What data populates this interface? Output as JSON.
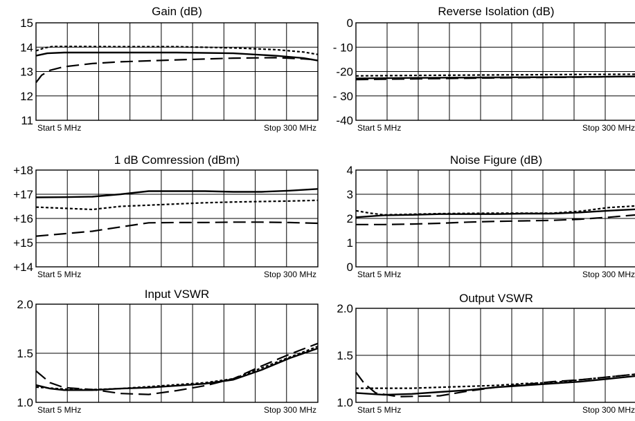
{
  "chart_data": [
    {
      "type": "line",
      "title": "Gain (dB)",
      "ylim": [
        11,
        15
      ],
      "xlim": [
        0,
        10
      ],
      "y_ticks": [
        "15",
        "14",
        "13",
        "12",
        "11"
      ],
      "x_start_label": "Start 5 MHz",
      "x_stop_label": "Stop 300 MHz",
      "grid": true,
      "series": [
        {
          "style": "solid",
          "points": [
            [
              0,
              13.65
            ],
            [
              0.4,
              13.75
            ],
            [
              1,
              13.78
            ],
            [
              3,
              13.78
            ],
            [
              5,
              13.78
            ],
            [
              7,
              13.75
            ],
            [
              8.5,
              13.65
            ],
            [
              9.5,
              13.55
            ],
            [
              10,
              13.45
            ]
          ]
        },
        {
          "style": "dotted",
          "points": [
            [
              0,
              13.85
            ],
            [
              0.3,
              13.97
            ],
            [
              0.6,
              14.03
            ],
            [
              1.5,
              14.03
            ],
            [
              3,
              14.02
            ],
            [
              5,
              14.02
            ],
            [
              7,
              13.97
            ],
            [
              8.5,
              13.9
            ],
            [
              9.5,
              13.8
            ],
            [
              10,
              13.7
            ]
          ]
        },
        {
          "style": "dashed",
          "points": [
            [
              0,
              12.55
            ],
            [
              0.2,
              12.85
            ],
            [
              0.5,
              13.05
            ],
            [
              1,
              13.2
            ],
            [
              2,
              13.33
            ],
            [
              3,
              13.4
            ],
            [
              5,
              13.48
            ],
            [
              7,
              13.55
            ],
            [
              8.5,
              13.57
            ],
            [
              9.5,
              13.52
            ],
            [
              10,
              13.48
            ]
          ]
        }
      ]
    },
    {
      "type": "line",
      "title": "Reverse Isolation (dB)",
      "ylim": [
        -40,
        0
      ],
      "xlim": [
        0,
        10
      ],
      "y_ticks": [
        "0",
        "- 10",
        "-20",
        "- 30",
        "-40"
      ],
      "x_start_label": "Start 5 MHz",
      "x_stop_label": "Stop  300 MHz",
      "grid": true,
      "series": [
        {
          "style": "solid",
          "points": [
            [
              0,
              -22.8
            ],
            [
              2,
              -22.6
            ],
            [
              5,
              -22.4
            ],
            [
              8,
              -22.2
            ],
            [
              10,
              -22.0
            ]
          ]
        },
        {
          "style": "dotted",
          "points": [
            [
              0,
              -21.8
            ],
            [
              2,
              -21.6
            ],
            [
              5,
              -21.4
            ],
            [
              8,
              -21.2
            ],
            [
              10,
              -21.1
            ]
          ]
        },
        {
          "style": "dashed",
          "points": [
            [
              0,
              -23.3
            ],
            [
              2,
              -23.0
            ],
            [
              5,
              -22.6
            ],
            [
              8,
              -22.3
            ],
            [
              10,
              -22.0
            ]
          ]
        }
      ]
    },
    {
      "type": "line",
      "title": "1 dB Comression (dBm)",
      "ylim": [
        14,
        18
      ],
      "xlim": [
        0,
        10
      ],
      "y_ticks": [
        "+18",
        "+17",
        "+16",
        "+15",
        "+14"
      ],
      "x_start_label": "Start 5 MHz",
      "x_stop_label": "Stop 300 MHz",
      "grid": true,
      "series": [
        {
          "style": "solid",
          "points": [
            [
              0,
              16.87
            ],
            [
              1,
              16.88
            ],
            [
              2,
              16.9
            ],
            [
              3,
              17.0
            ],
            [
              4,
              17.13
            ],
            [
              5,
              17.13
            ],
            [
              6,
              17.13
            ],
            [
              7,
              17.1
            ],
            [
              8,
              17.1
            ],
            [
              9,
              17.15
            ],
            [
              10,
              17.22
            ]
          ]
        },
        {
          "style": "dotted",
          "points": [
            [
              0,
              16.47
            ],
            [
              1,
              16.42
            ],
            [
              2,
              16.37
            ],
            [
              3,
              16.5
            ],
            [
              4,
              16.55
            ],
            [
              5,
              16.6
            ],
            [
              6,
              16.65
            ],
            [
              7,
              16.68
            ],
            [
              8,
              16.7
            ],
            [
              9,
              16.72
            ],
            [
              10,
              16.75
            ]
          ]
        },
        {
          "style": "dashed",
          "points": [
            [
              0,
              15.27
            ],
            [
              1,
              15.37
            ],
            [
              2,
              15.47
            ],
            [
              3,
              15.65
            ],
            [
              4,
              15.82
            ],
            [
              5,
              15.83
            ],
            [
              6,
              15.83
            ],
            [
              7,
              15.85
            ],
            [
              8,
              15.85
            ],
            [
              9,
              15.83
            ],
            [
              10,
              15.8
            ]
          ]
        }
      ]
    },
    {
      "type": "line",
      "title": "Noise Figure (dB)",
      "ylim": [
        0,
        4
      ],
      "xlim": [
        0,
        10
      ],
      "y_ticks": [
        "4",
        "3",
        "2",
        "1",
        "0"
      ],
      "x_start_label": "Start 5 MHz",
      "x_stop_label": "Stop  300 MHz",
      "grid": true,
      "series": [
        {
          "style": "solid",
          "points": [
            [
              0,
              2.05
            ],
            [
              1,
              2.13
            ],
            [
              2,
              2.15
            ],
            [
              3,
              2.18
            ],
            [
              4,
              2.18
            ],
            [
              5,
              2.18
            ],
            [
              6,
              2.2
            ],
            [
              7,
              2.2
            ],
            [
              8,
              2.25
            ],
            [
              9,
              2.32
            ],
            [
              10,
              2.38
            ]
          ]
        },
        {
          "style": "dotted",
          "points": [
            [
              0,
              2.32
            ],
            [
              0.5,
              2.22
            ],
            [
              1,
              2.15
            ],
            [
              3,
              2.2
            ],
            [
              5,
              2.22
            ],
            [
              7,
              2.22
            ],
            [
              8,
              2.3
            ],
            [
              9,
              2.45
            ],
            [
              10,
              2.52
            ]
          ]
        },
        {
          "style": "dashed",
          "points": [
            [
              0,
              1.75
            ],
            [
              1,
              1.75
            ],
            [
              2,
              1.77
            ],
            [
              3,
              1.8
            ],
            [
              4,
              1.85
            ],
            [
              5,
              1.88
            ],
            [
              6,
              1.9
            ],
            [
              7,
              1.92
            ],
            [
              8,
              1.97
            ],
            [
              9,
              2.05
            ],
            [
              10,
              2.15
            ]
          ]
        }
      ]
    },
    {
      "type": "line",
      "title": "Input VSWR",
      "ylim": [
        1.0,
        2.0
      ],
      "xlim": [
        0,
        10
      ],
      "y_ticks": [
        "2.0",
        "1.5",
        "1.0"
      ],
      "x_start_label": "Start  5 MHz",
      "x_stop_label": "Stop  300 MHz",
      "grid": true,
      "series": [
        {
          "style": "solid",
          "points": [
            [
              0,
              1.175
            ],
            [
              0.5,
              1.14
            ],
            [
              1,
              1.125
            ],
            [
              2,
              1.125
            ],
            [
              3,
              1.14
            ],
            [
              4,
              1.15
            ],
            [
              5,
              1.17
            ],
            [
              6,
              1.19
            ],
            [
              7,
              1.23
            ],
            [
              8,
              1.33
            ],
            [
              9,
              1.45
            ],
            [
              10,
              1.55
            ]
          ]
        },
        {
          "style": "dotted",
          "points": [
            [
              0,
              1.155
            ],
            [
              1,
              1.135
            ],
            [
              2,
              1.13
            ],
            [
              3,
              1.14
            ],
            [
              4,
              1.16
            ],
            [
              5,
              1.18
            ],
            [
              6,
              1.2
            ],
            [
              7,
              1.24
            ],
            [
              8,
              1.35
            ],
            [
              9,
              1.46
            ],
            [
              10,
              1.57
            ]
          ]
        },
        {
          "style": "dashed",
          "points": [
            [
              0,
              1.32
            ],
            [
              0.5,
              1.2
            ],
            [
              1,
              1.15
            ],
            [
              2,
              1.13
            ],
            [
              3,
              1.09
            ],
            [
              4,
              1.08
            ],
            [
              5,
              1.12
            ],
            [
              6,
              1.17
            ],
            [
              7,
              1.24
            ],
            [
              8,
              1.37
            ],
            [
              9,
              1.49
            ],
            [
              10,
              1.6
            ]
          ]
        }
      ]
    },
    {
      "type": "line",
      "title": "Output VSWR",
      "ylim": [
        1.0,
        2.0
      ],
      "xlim": [
        0,
        10
      ],
      "y_ticks": [
        "2.0",
        "1.5",
        "1.0"
      ],
      "x_start_label": "Start 5 MHz",
      "x_stop_label": "Stop 300 MHz",
      "grid": true,
      "series": [
        {
          "style": "solid",
          "points": [
            [
              0,
              1.1
            ],
            [
              1,
              1.08
            ],
            [
              2,
              1.09
            ],
            [
              3,
              1.11
            ],
            [
              4,
              1.13
            ],
            [
              5,
              1.16
            ],
            [
              6,
              1.18
            ],
            [
              7,
              1.2
            ],
            [
              8,
              1.22
            ],
            [
              9,
              1.25
            ],
            [
              10,
              1.28
            ]
          ]
        },
        {
          "style": "dotted",
          "points": [
            [
              0,
              1.15
            ],
            [
              1,
              1.15
            ],
            [
              2,
              1.15
            ],
            [
              3,
              1.16
            ],
            [
              4,
              1.17
            ],
            [
              5,
              1.18
            ],
            [
              6,
              1.2
            ],
            [
              7,
              1.21
            ],
            [
              8,
              1.24
            ],
            [
              9,
              1.27
            ],
            [
              10,
              1.3
            ]
          ]
        },
        {
          "style": "dashed",
          "points": [
            [
              0,
              1.32
            ],
            [
              0.3,
              1.2
            ],
            [
              0.7,
              1.1
            ],
            [
              1.5,
              1.06
            ],
            [
              3,
              1.07
            ],
            [
              4,
              1.12
            ],
            [
              5,
              1.16
            ],
            [
              6,
              1.19
            ],
            [
              7,
              1.22
            ],
            [
              8,
              1.24
            ],
            [
              9,
              1.27
            ],
            [
              10,
              1.3
            ]
          ]
        }
      ]
    }
  ]
}
